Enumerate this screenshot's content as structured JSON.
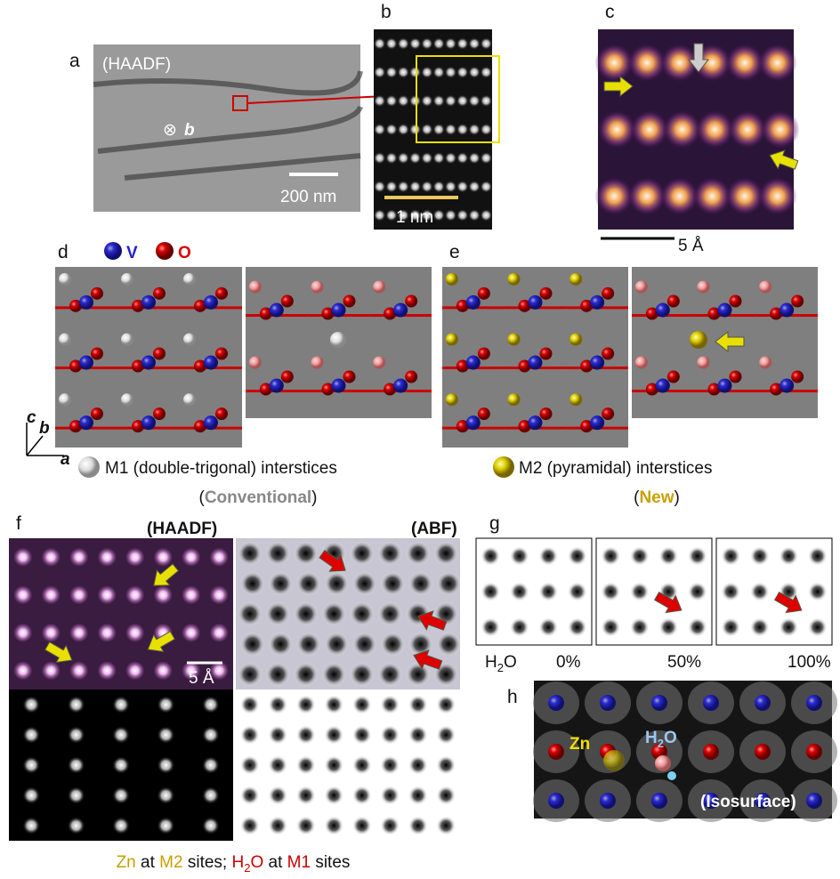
{
  "panels": {
    "a": {
      "label": "a",
      "mode": "(HAADF)",
      "axis_symbol": "⊗",
      "axis_label": "b",
      "scale": "200 nm"
    },
    "b": {
      "label": "b",
      "scale": "1 nm"
    },
    "c": {
      "label": "c",
      "scale": "5 Å"
    },
    "d": {
      "label": "d",
      "legend": [
        "V",
        "O"
      ],
      "sites": "M1 (double-trigonal) interstices",
      "note": [
        "(",
        "Conventional",
        ")"
      ]
    },
    "e": {
      "label": "e",
      "sites": "M2 (pyramidal) interstices",
      "note": [
        "(",
        "New",
        ")"
      ]
    },
    "axes": [
      "c",
      "b",
      "a"
    ],
    "f": {
      "label": "f",
      "left": "(HAADF)",
      "right": "(ABF)",
      "scale": "5 Å"
    },
    "g": {
      "label": "g",
      "species": [
        "H",
        "2",
        "O"
      ],
      "fractions": [
        "0%",
        "50%",
        "100%"
      ]
    },
    "h": {
      "label": "h",
      "zn": "Zn",
      "water": [
        "H",
        "2",
        "O"
      ],
      "mode": "(Isosurface)"
    }
  },
  "caption": [
    "Zn",
    " at ",
    "M2",
    " sites; ",
    "H",
    "2",
    "O",
    " at ",
    "M1",
    " sites"
  ]
}
